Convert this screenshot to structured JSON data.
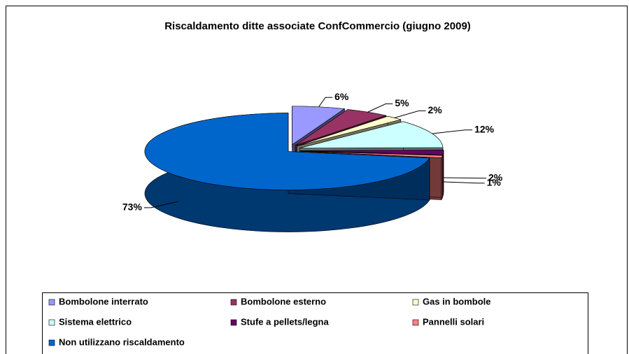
{
  "chart_data": {
    "type": "pie3d",
    "title": "Riscaldamento ditte associate ConfCommercio (giugno 2009)",
    "categories": [
      "Bombolone interrato",
      "Bombolone esterno",
      "Gas in bombole",
      "Sistema elettrico",
      "Stufe a pellets/legna",
      "Pannelli solari",
      "Non utilizzano riscaldamento"
    ],
    "values": [
      6,
      5,
      2,
      12,
      2,
      1,
      73
    ],
    "value_labels": [
      "6%",
      "5%",
      "2%",
      "12%",
      "2%",
      "1%",
      "73%"
    ],
    "colors": [
      "#9999ff",
      "#993366",
      "#ffffcc",
      "#ccffff",
      "#660066",
      "#ff8080",
      "#0066cc"
    ],
    "legend": "bottom"
  }
}
